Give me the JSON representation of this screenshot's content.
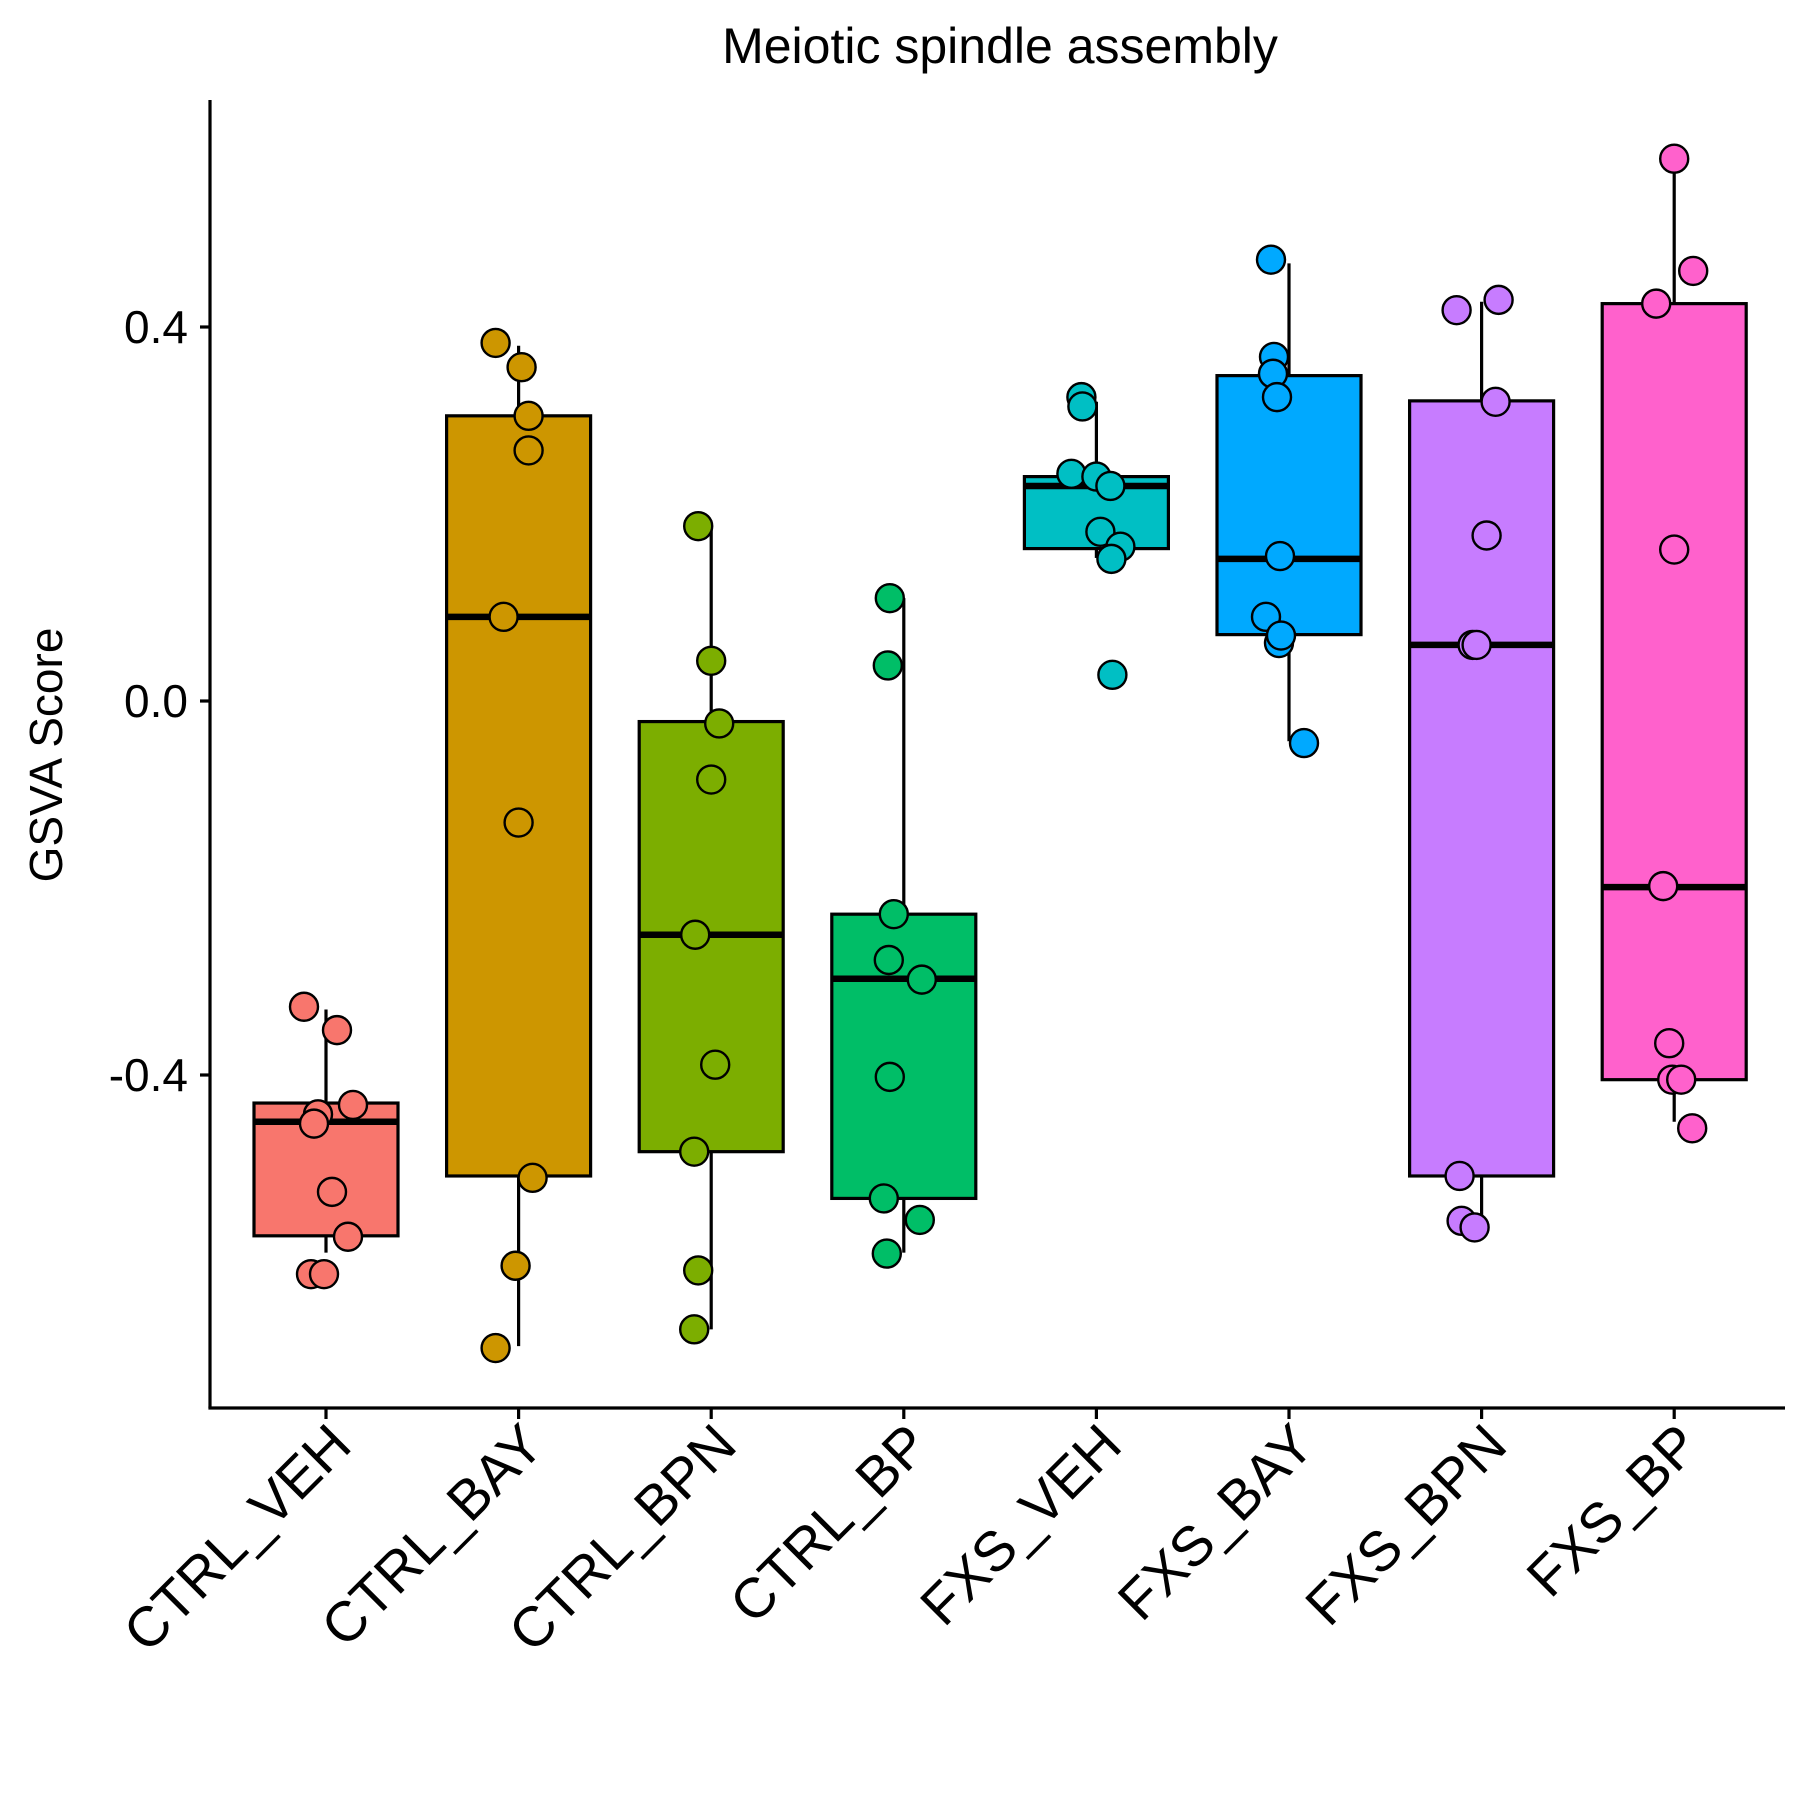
{
  "chart_data": {
    "type": "box",
    "title": "Meiotic spindle assembly",
    "xlabel": "",
    "ylabel": "GSVA Score",
    "yticks": [
      {
        "value": 0.4,
        "label": "0.4"
      },
      {
        "value": 0.0,
        "label": "0.0"
      },
      {
        "value": -0.4,
        "label": "-0.4"
      }
    ],
    "ylim": [
      -0.75,
      0.64
    ],
    "grid": false,
    "legend": "none",
    "categories": [
      "CTRL_VEH",
      "CTRL_BAY",
      "CTRL_BPN",
      "CTRL_BP",
      "FXS_VEH",
      "FXS_BAY",
      "FXS_BPN",
      "FXS_BP"
    ],
    "colors": [
      "#F8766D",
      "#CD9600",
      "#7CAE00",
      "#00BE67",
      "#00BFC4",
      "#00A9FF",
      "#C77CFF",
      "#FF61CC"
    ],
    "boxes": [
      {
        "q1": -0.572,
        "median": -0.45,
        "q3": -0.43,
        "whisker_low": -0.59,
        "whisker_high": -0.33
      },
      {
        "q1": -0.508,
        "median": 0.09,
        "q3": 0.305,
        "whisker_low": -0.69,
        "whisker_high": 0.38
      },
      {
        "q1": -0.482,
        "median": -0.25,
        "q3": -0.022,
        "whisker_low": -0.672,
        "whisker_high": 0.185
      },
      {
        "q1": -0.532,
        "median": -0.297,
        "q3": -0.228,
        "whisker_low": -0.59,
        "whisker_high": 0.11
      },
      {
        "q1": 0.163,
        "median": 0.23,
        "q3": 0.24,
        "whisker_low": 0.153,
        "whisker_high": 0.32
      },
      {
        "q1": 0.071,
        "median": 0.152,
        "q3": 0.348,
        "whisker_low": -0.043,
        "whisker_high": 0.468
      },
      {
        "q1": -0.508,
        "median": 0.06,
        "q3": 0.321,
        "whisker_low": -0.557,
        "whisker_high": 0.427
      },
      {
        "q1": -0.405,
        "median": -0.199,
        "q3": 0.425,
        "whisker_low": -0.45,
        "whisker_high": 0.58
      }
    ],
    "points": [
      [
        -0.327,
        -0.352,
        -0.432,
        -0.442,
        -0.452,
        -0.525,
        -0.573,
        -0.613,
        -0.613
      ],
      [
        0.383,
        0.357,
        0.305,
        0.268,
        0.09,
        -0.13,
        -0.51,
        -0.604,
        -0.692
      ],
      [
        0.187,
        0.043,
        -0.024,
        -0.084,
        -0.25,
        -0.389,
        -0.482,
        -0.609,
        -0.672
      ],
      [
        0.11,
        0.038,
        -0.228,
        -0.277,
        -0.298,
        -0.402,
        -0.532,
        -0.555,
        -0.591
      ],
      [
        0.325,
        0.315,
        0.243,
        0.24,
        0.23,
        0.181,
        0.165,
        0.152,
        0.028
      ],
      [
        0.472,
        0.368,
        0.35,
        0.325,
        0.155,
        0.09,
        0.062,
        0.07,
        -0.045
      ],
      [
        0.418,
        0.429,
        0.32,
        0.177,
        0.06,
        0.06,
        -0.508,
        -0.556,
        -0.563
      ],
      [
        0.58,
        0.46,
        0.425,
        0.162,
        -0.198,
        -0.366,
        -0.405,
        -0.405,
        -0.457
      ]
    ],
    "jitter": [
      [
        -0.22,
        0.11,
        0.27,
        -0.08,
        -0.12,
        0.06,
        0.22,
        -0.15,
        -0.02
      ],
      [
        -0.23,
        0.03,
        0.1,
        0.1,
        -0.15,
        0.0,
        0.14,
        -0.03,
        -0.23
      ],
      [
        -0.13,
        0.0,
        0.08,
        0.0,
        -0.16,
        0.04,
        -0.17,
        -0.13,
        -0.17
      ],
      [
        -0.14,
        -0.16,
        -0.1,
        -0.15,
        0.18,
        -0.14,
        -0.2,
        0.16,
        -0.17
      ],
      [
        -0.15,
        -0.14,
        -0.25,
        0.0,
        0.14,
        0.04,
        0.24,
        0.15,
        0.16
      ],
      [
        -0.18,
        -0.15,
        -0.16,
        -0.12,
        -0.09,
        -0.23,
        -0.1,
        -0.08,
        0.15
      ],
      [
        -0.25,
        0.17,
        0.14,
        0.05,
        -0.09,
        -0.05,
        -0.22,
        -0.2,
        -0.07
      ],
      [
        0.0,
        0.19,
        -0.18,
        0.0,
        -0.11,
        -0.05,
        -0.02,
        0.07,
        0.18
      ]
    ]
  }
}
